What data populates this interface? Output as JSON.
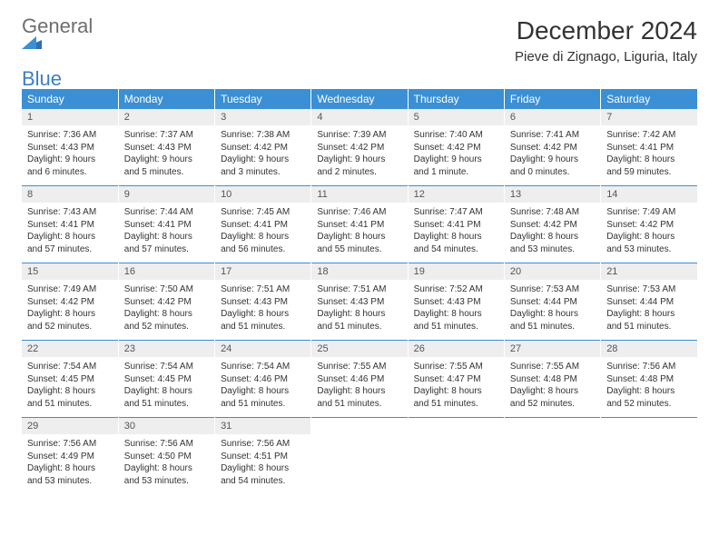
{
  "brand": {
    "name1": "General",
    "name2": "Blue"
  },
  "title": "December 2024",
  "location": "Pieve di Zignago, Liguria, Italy",
  "colors": {
    "header_bg": "#3b8fd4",
    "header_text": "#ffffff",
    "daynum_bg": "#eeeeee",
    "daynum_text": "#555555",
    "body_text": "#333333",
    "rule": "#3b8fd4"
  },
  "fonts": {
    "title_pt": 28,
    "location_pt": 15,
    "dow_pt": 12,
    "daynum_pt": 11,
    "detail_pt": 10
  },
  "dow": [
    "Sunday",
    "Monday",
    "Tuesday",
    "Wednesday",
    "Thursday",
    "Friday",
    "Saturday"
  ],
  "weeks": [
    [
      {
        "n": "1",
        "sr": "Sunrise: 7:36 AM",
        "ss": "Sunset: 4:43 PM",
        "d1": "Daylight: 9 hours",
        "d2": "and 6 minutes."
      },
      {
        "n": "2",
        "sr": "Sunrise: 7:37 AM",
        "ss": "Sunset: 4:43 PM",
        "d1": "Daylight: 9 hours",
        "d2": "and 5 minutes."
      },
      {
        "n": "3",
        "sr": "Sunrise: 7:38 AM",
        "ss": "Sunset: 4:42 PM",
        "d1": "Daylight: 9 hours",
        "d2": "and 3 minutes."
      },
      {
        "n": "4",
        "sr": "Sunrise: 7:39 AM",
        "ss": "Sunset: 4:42 PM",
        "d1": "Daylight: 9 hours",
        "d2": "and 2 minutes."
      },
      {
        "n": "5",
        "sr": "Sunrise: 7:40 AM",
        "ss": "Sunset: 4:42 PM",
        "d1": "Daylight: 9 hours",
        "d2": "and 1 minute."
      },
      {
        "n": "6",
        "sr": "Sunrise: 7:41 AM",
        "ss": "Sunset: 4:42 PM",
        "d1": "Daylight: 9 hours",
        "d2": "and 0 minutes."
      },
      {
        "n": "7",
        "sr": "Sunrise: 7:42 AM",
        "ss": "Sunset: 4:41 PM",
        "d1": "Daylight: 8 hours",
        "d2": "and 59 minutes."
      }
    ],
    [
      {
        "n": "8",
        "sr": "Sunrise: 7:43 AM",
        "ss": "Sunset: 4:41 PM",
        "d1": "Daylight: 8 hours",
        "d2": "and 57 minutes."
      },
      {
        "n": "9",
        "sr": "Sunrise: 7:44 AM",
        "ss": "Sunset: 4:41 PM",
        "d1": "Daylight: 8 hours",
        "d2": "and 57 minutes."
      },
      {
        "n": "10",
        "sr": "Sunrise: 7:45 AM",
        "ss": "Sunset: 4:41 PM",
        "d1": "Daylight: 8 hours",
        "d2": "and 56 minutes."
      },
      {
        "n": "11",
        "sr": "Sunrise: 7:46 AM",
        "ss": "Sunset: 4:41 PM",
        "d1": "Daylight: 8 hours",
        "d2": "and 55 minutes."
      },
      {
        "n": "12",
        "sr": "Sunrise: 7:47 AM",
        "ss": "Sunset: 4:41 PM",
        "d1": "Daylight: 8 hours",
        "d2": "and 54 minutes."
      },
      {
        "n": "13",
        "sr": "Sunrise: 7:48 AM",
        "ss": "Sunset: 4:42 PM",
        "d1": "Daylight: 8 hours",
        "d2": "and 53 minutes."
      },
      {
        "n": "14",
        "sr": "Sunrise: 7:49 AM",
        "ss": "Sunset: 4:42 PM",
        "d1": "Daylight: 8 hours",
        "d2": "and 53 minutes."
      }
    ],
    [
      {
        "n": "15",
        "sr": "Sunrise: 7:49 AM",
        "ss": "Sunset: 4:42 PM",
        "d1": "Daylight: 8 hours",
        "d2": "and 52 minutes."
      },
      {
        "n": "16",
        "sr": "Sunrise: 7:50 AM",
        "ss": "Sunset: 4:42 PM",
        "d1": "Daylight: 8 hours",
        "d2": "and 52 minutes."
      },
      {
        "n": "17",
        "sr": "Sunrise: 7:51 AM",
        "ss": "Sunset: 4:43 PM",
        "d1": "Daylight: 8 hours",
        "d2": "and 51 minutes."
      },
      {
        "n": "18",
        "sr": "Sunrise: 7:51 AM",
        "ss": "Sunset: 4:43 PM",
        "d1": "Daylight: 8 hours",
        "d2": "and 51 minutes."
      },
      {
        "n": "19",
        "sr": "Sunrise: 7:52 AM",
        "ss": "Sunset: 4:43 PM",
        "d1": "Daylight: 8 hours",
        "d2": "and 51 minutes."
      },
      {
        "n": "20",
        "sr": "Sunrise: 7:53 AM",
        "ss": "Sunset: 4:44 PM",
        "d1": "Daylight: 8 hours",
        "d2": "and 51 minutes."
      },
      {
        "n": "21",
        "sr": "Sunrise: 7:53 AM",
        "ss": "Sunset: 4:44 PM",
        "d1": "Daylight: 8 hours",
        "d2": "and 51 minutes."
      }
    ],
    [
      {
        "n": "22",
        "sr": "Sunrise: 7:54 AM",
        "ss": "Sunset: 4:45 PM",
        "d1": "Daylight: 8 hours",
        "d2": "and 51 minutes."
      },
      {
        "n": "23",
        "sr": "Sunrise: 7:54 AM",
        "ss": "Sunset: 4:45 PM",
        "d1": "Daylight: 8 hours",
        "d2": "and 51 minutes."
      },
      {
        "n": "24",
        "sr": "Sunrise: 7:54 AM",
        "ss": "Sunset: 4:46 PM",
        "d1": "Daylight: 8 hours",
        "d2": "and 51 minutes."
      },
      {
        "n": "25",
        "sr": "Sunrise: 7:55 AM",
        "ss": "Sunset: 4:46 PM",
        "d1": "Daylight: 8 hours",
        "d2": "and 51 minutes."
      },
      {
        "n": "26",
        "sr": "Sunrise: 7:55 AM",
        "ss": "Sunset: 4:47 PM",
        "d1": "Daylight: 8 hours",
        "d2": "and 51 minutes."
      },
      {
        "n": "27",
        "sr": "Sunrise: 7:55 AM",
        "ss": "Sunset: 4:48 PM",
        "d1": "Daylight: 8 hours",
        "d2": "and 52 minutes."
      },
      {
        "n": "28",
        "sr": "Sunrise: 7:56 AM",
        "ss": "Sunset: 4:48 PM",
        "d1": "Daylight: 8 hours",
        "d2": "and 52 minutes."
      }
    ],
    [
      {
        "n": "29",
        "sr": "Sunrise: 7:56 AM",
        "ss": "Sunset: 4:49 PM",
        "d1": "Daylight: 8 hours",
        "d2": "and 53 minutes."
      },
      {
        "n": "30",
        "sr": "Sunrise: 7:56 AM",
        "ss": "Sunset: 4:50 PM",
        "d1": "Daylight: 8 hours",
        "d2": "and 53 minutes."
      },
      {
        "n": "31",
        "sr": "Sunrise: 7:56 AM",
        "ss": "Sunset: 4:51 PM",
        "d1": "Daylight: 8 hours",
        "d2": "and 54 minutes."
      },
      null,
      null,
      null,
      null
    ]
  ]
}
